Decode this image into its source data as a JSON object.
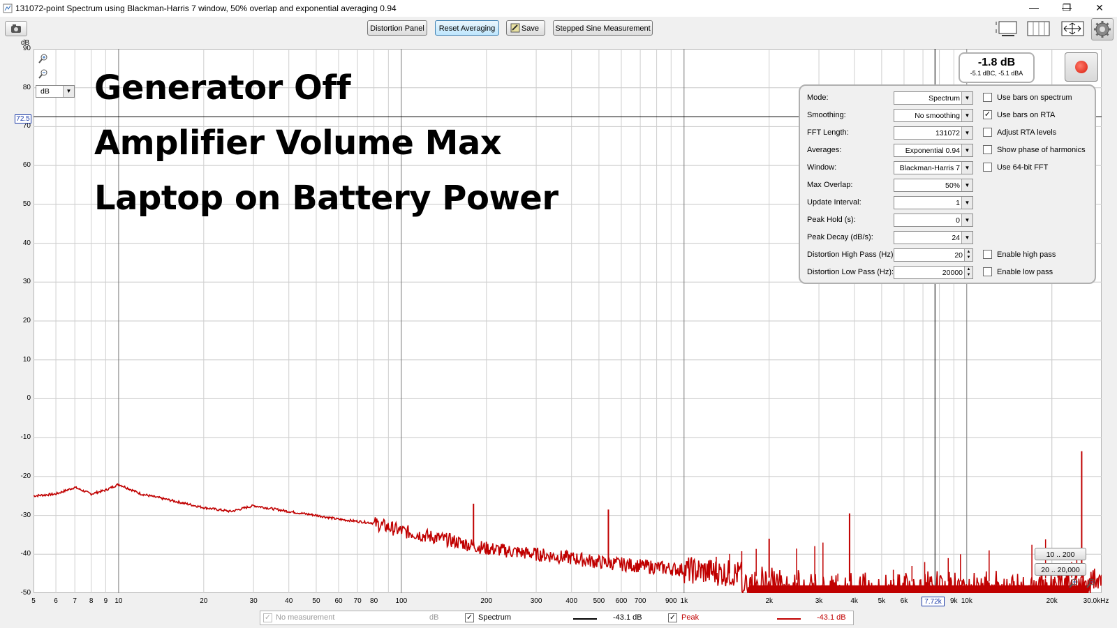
{
  "window": {
    "title": "131072-point Spectrum using Blackman-Harris 7 window, 50% overlap and exponential averaging 0.94",
    "minimize": "—",
    "restore": "❐",
    "close": "✕"
  },
  "toolbar": {
    "buttons": [
      "Distortion Panel",
      "Reset Averaging",
      "Save",
      "Stepped Sine Measurement"
    ]
  },
  "overlay_text": [
    "Generator Off",
    "Amplifier Volume Max",
    "Laptop on Battery Power"
  ],
  "level_display": {
    "main": "-1.8 dB",
    "sub": "-5.1 dBC, -5.1 dBA"
  },
  "unit_select": "dB",
  "y_axis_unit": "dB",
  "cursor": {
    "y_value": "72.5",
    "x_value": "7.72k"
  },
  "settings": {
    "rows": [
      {
        "label": "Mode:",
        "value": "Spectrum"
      },
      {
        "label": "Smoothing:",
        "value": "No  smoothing"
      },
      {
        "label": "FFT Length:",
        "value": "131072"
      },
      {
        "label": "Averages:",
        "value": "Exponential 0.94"
      },
      {
        "label": "Window:",
        "value": "Blackman-Harris 7"
      },
      {
        "label": "Max Overlap:",
        "value": "50%"
      },
      {
        "label": "Update Interval:",
        "value": "1"
      },
      {
        "label": "Peak Hold (s):",
        "value": "0"
      },
      {
        "label": "Peak Decay (dB/s):",
        "value": "24"
      },
      {
        "label": "Distortion High Pass (Hz):",
        "value": "20"
      },
      {
        "label": "Distortion Low Pass (Hz):",
        "value": "20000"
      }
    ],
    "checkboxes": [
      {
        "label": "Use bars on spectrum",
        "checked": false
      },
      {
        "label": "Use bars on RTA",
        "checked": true
      },
      {
        "label": "Adjust RTA levels",
        "checked": false
      },
      {
        "label": "Show phase of harmonics",
        "checked": false
      },
      {
        "label": "Use 64-bit FFT",
        "checked": false
      },
      {
        "label": "Enable high pass",
        "checked": false
      },
      {
        "label": "Enable low pass",
        "checked": false
      }
    ]
  },
  "range_buttons": [
    "10 .. 200",
    "20 .. 20,000"
  ],
  "legend": {
    "items": [
      {
        "name": "No measurement",
        "value": "dB",
        "checked": true,
        "enabled": false,
        "color": "#9a9a9a"
      },
      {
        "name": "Spectrum",
        "value": "-43.1 dB",
        "checked": true,
        "enabled": true,
        "color": "#000000"
      },
      {
        "name": "Peak",
        "value": "-43.1 dB",
        "checked": true,
        "enabled": true,
        "color": "#c00000"
      }
    ]
  },
  "chart_data": {
    "type": "line",
    "xscale": "log",
    "xlim": [
      5,
      30000
    ],
    "ylim": [
      -50,
      90
    ],
    "ylabel": "dB",
    "x_ticks": [
      "5",
      "6",
      "7",
      "8",
      "9",
      "10",
      "20",
      "30",
      "40",
      "50",
      "60",
      "70",
      "80",
      "100",
      "200",
      "300",
      "400",
      "500",
      "600",
      "700",
      "900",
      "1k",
      "2k",
      "3k",
      "4k",
      "5k",
      "6k",
      "7",
      "9k",
      "10k",
      "20k",
      "30.0kHz"
    ],
    "x_tick_values": [
      5,
      6,
      7,
      8,
      9,
      10,
      20,
      30,
      40,
      50,
      60,
      70,
      80,
      100,
      200,
      300,
      400,
      500,
      600,
      700,
      900,
      1000,
      2000,
      3000,
      4000,
      5000,
      6000,
      7000,
      9000,
      10000,
      20000,
      30000
    ],
    "y_ticks": [
      90,
      80,
      70,
      60,
      50,
      40,
      30,
      20,
      10,
      0,
      -10,
      -20,
      -30,
      -40,
      -50
    ],
    "series": [
      {
        "name": "Peak",
        "color": "#c00000",
        "x": [
          5,
          6,
          7,
          8,
          9,
          10,
          12,
          15,
          20,
          25,
          30,
          40,
          50,
          60,
          80,
          100,
          150,
          200,
          300,
          400,
          500,
          700,
          1000,
          1500,
          2000,
          3000,
          4000,
          5000,
          7000,
          10000,
          15000,
          20000,
          25000,
          30000
        ],
        "y": [
          -25,
          -24.5,
          -22.8,
          -24.5,
          -23.5,
          -22,
          -24.5,
          -26,
          -28,
          -29,
          -27.5,
          -29,
          -30,
          -31,
          -32,
          -34,
          -36.5,
          -38.5,
          -40,
          -41,
          -42,
          -43,
          -44,
          -45,
          -46,
          -47,
          -47,
          -47,
          -47,
          -47,
          -47,
          -46,
          -46,
          -46
        ],
        "spikes": [
          {
            "x": 180,
            "y": -27
          },
          {
            "x": 540,
            "y": -28.5
          },
          {
            "x": 2000,
            "y": -36
          },
          {
            "x": 3850,
            "y": -29.5
          },
          {
            "x": 25500,
            "y": -13.5
          }
        ]
      }
    ]
  }
}
